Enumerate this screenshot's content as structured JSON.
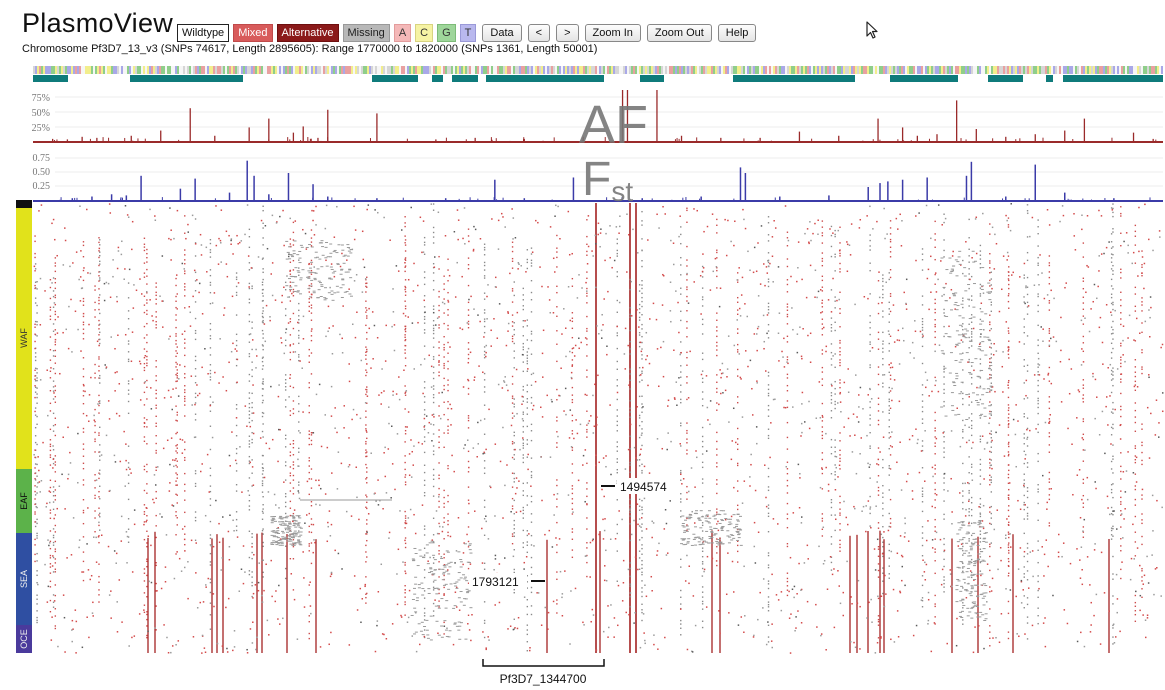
{
  "app": {
    "title": "PlasmoView"
  },
  "toolbar": {
    "legend": [
      {
        "label": "Wildtype",
        "key": "wildtype",
        "color": "#ffffff"
      },
      {
        "label": "Mixed",
        "key": "mixed",
        "color": "#d85b5b"
      },
      {
        "label": "Alternative",
        "key": "alternative",
        "color": "#8b1a1a"
      },
      {
        "label": "Missing",
        "key": "missing",
        "color": "#b8b8b8"
      },
      {
        "label": "A",
        "key": "a",
        "color": "#f4b8b8"
      },
      {
        "label": "C",
        "key": "c",
        "color": "#f6f3a4"
      },
      {
        "label": "G",
        "key": "g",
        "color": "#9ed69a"
      },
      {
        "label": "T",
        "key": "t",
        "color": "#b9b8ee"
      }
    ],
    "buttons": {
      "data": "Data",
      "prev": "<",
      "next": ">",
      "zoom_in": "Zoom In",
      "zoom_out": "Zoom Out",
      "help": "Help"
    }
  },
  "info": {
    "text": "Chromosome Pf3D7_13_v3 (SNPs 74617, Length 2895605): Range 1770000 to 1820000 (SNPs 1361, Length 50001)"
  },
  "tracks": {
    "af": {
      "label": "AF",
      "ticks": [
        "75%",
        "50%",
        "25%"
      ],
      "color": "#9a2a2a",
      "peaks": [
        [
          0.02,
          0.06
        ],
        [
          0.035,
          0.05
        ],
        [
          0.05,
          0.1
        ],
        [
          0.065,
          0.08
        ],
        [
          0.1,
          0.12
        ],
        [
          0.13,
          0.22
        ],
        [
          0.16,
          0.65
        ],
        [
          0.185,
          0.12
        ],
        [
          0.22,
          0.28
        ],
        [
          0.24,
          0.45
        ],
        [
          0.265,
          0.18
        ],
        [
          0.275,
          0.3
        ],
        [
          0.29,
          0.08
        ],
        [
          0.3,
          0.62
        ],
        [
          0.35,
          0.55
        ],
        [
          0.41,
          0.05
        ],
        [
          0.45,
          0.08
        ],
        [
          0.5,
          0.06
        ],
        [
          0.56,
          0.1
        ],
        [
          0.6,
          1.0
        ],
        [
          0.605,
          1.0
        ],
        [
          0.635,
          1.0
        ],
        [
          0.66,
          0.12
        ],
        [
          0.7,
          0.08
        ],
        [
          0.74,
          0.08
        ],
        [
          0.78,
          0.2
        ],
        [
          0.82,
          0.12
        ],
        [
          0.86,
          0.45
        ],
        [
          0.885,
          0.28
        ],
        [
          0.9,
          0.12
        ],
        [
          0.92,
          0.15
        ],
        [
          0.94,
          0.8
        ],
        [
          0.96,
          0.25
        ],
        [
          0.99,
          0.1
        ],
        [
          1.02,
          0.15
        ],
        [
          1.05,
          0.22
        ],
        [
          1.07,
          0.45
        ],
        [
          1.12,
          0.18
        ],
        [
          1.14,
          0.06
        ]
      ]
    },
    "fst": {
      "label": "F",
      "label_sub": "st",
      "ticks": [
        "0.75",
        "0.50",
        "0.25"
      ],
      "color": "#3b3ba8",
      "peaks": [
        [
          0.04,
          0.05
        ],
        [
          0.06,
          0.08
        ],
        [
          0.08,
          0.12
        ],
        [
          0.095,
          0.1
        ],
        [
          0.11,
          0.45
        ],
        [
          0.15,
          0.22
        ],
        [
          0.165,
          0.4
        ],
        [
          0.2,
          0.15
        ],
        [
          0.218,
          0.72
        ],
        [
          0.225,
          0.45
        ],
        [
          0.24,
          0.12
        ],
        [
          0.26,
          0.5
        ],
        [
          0.285,
          0.3
        ],
        [
          0.3,
          0.08
        ],
        [
          0.35,
          0.05
        ],
        [
          0.42,
          0.05
        ],
        [
          0.47,
          0.38
        ],
        [
          0.5,
          0.05
        ],
        [
          0.55,
          0.42
        ],
        [
          0.62,
          0.05
        ],
        [
          0.68,
          0.08
        ],
        [
          0.72,
          0.6
        ],
        [
          0.725,
          0.5
        ],
        [
          0.76,
          0.08
        ],
        [
          0.81,
          0.1
        ],
        [
          0.85,
          0.25
        ],
        [
          0.862,
          0.32
        ],
        [
          0.87,
          0.35
        ],
        [
          0.885,
          0.38
        ],
        [
          0.91,
          0.42
        ],
        [
          0.95,
          0.45
        ],
        [
          0.955,
          0.7
        ],
        [
          0.99,
          0.08
        ],
        [
          1.02,
          0.65
        ],
        [
          1.05,
          0.15
        ],
        [
          1.1,
          0.05
        ]
      ]
    }
  },
  "populations": [
    {
      "label": "WAF",
      "color": "#e1e21b"
    },
    {
      "label": "EAF",
      "color": "#5cb24a"
    },
    {
      "label": "SEA",
      "color": "#2f4fa2"
    },
    {
      "label": "OCE",
      "color": "#4a3a9c"
    }
  ],
  "annotations": {
    "marker_1": "1494574",
    "marker_2": "1793121",
    "gene": "Pf3D7_1344700"
  }
}
